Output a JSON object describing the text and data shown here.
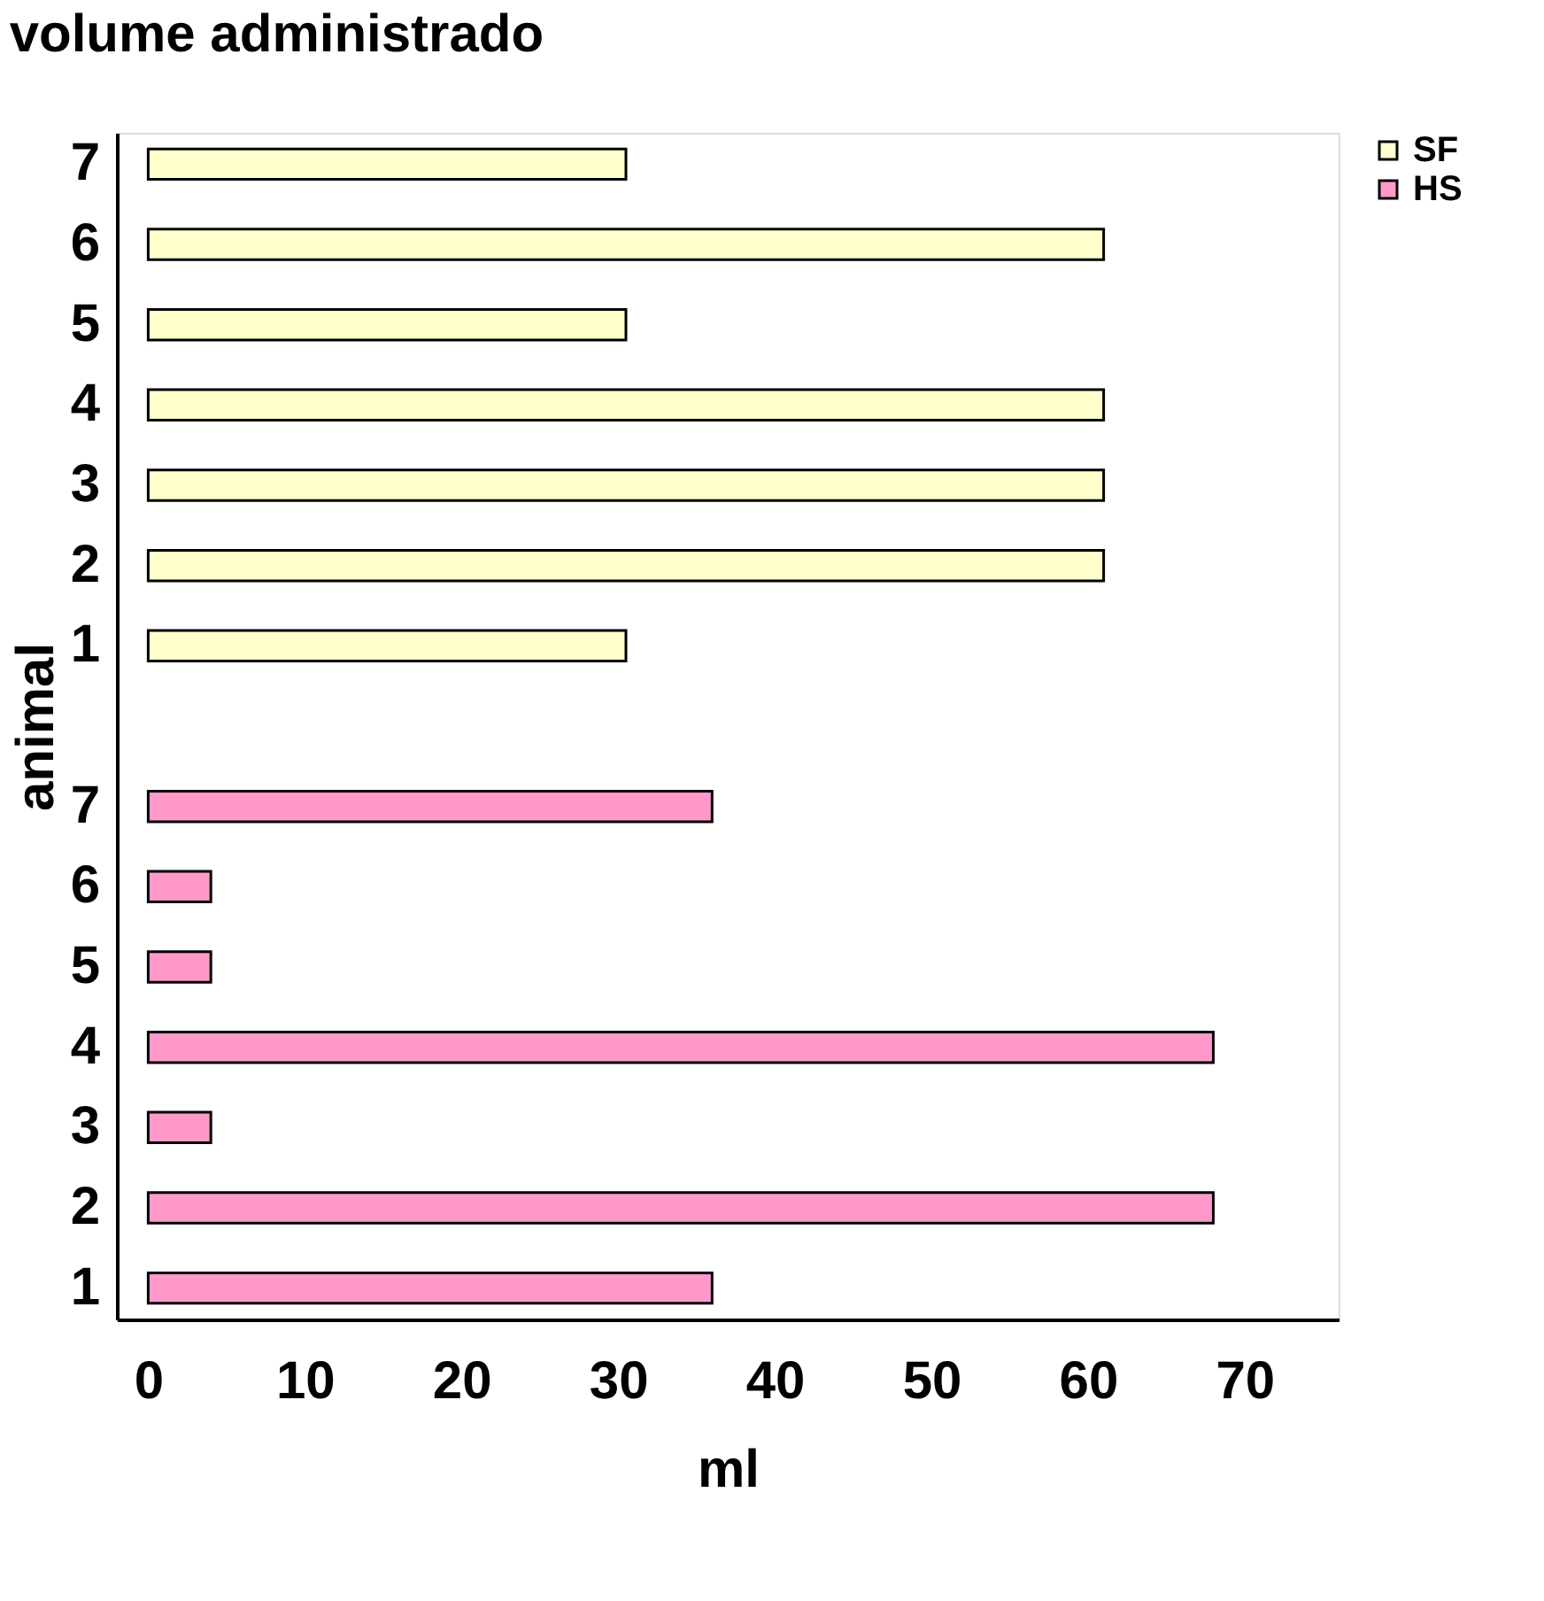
{
  "chart_data": {
    "type": "bar",
    "orientation": "horizontal",
    "title": "volume administrado",
    "xlabel": "ml",
    "ylabel": "animal",
    "categories": [
      "7",
      "6",
      "5",
      "4",
      "3",
      "2",
      "1",
      null,
      "7",
      "6",
      "5",
      "4",
      "3",
      "2",
      "1"
    ],
    "series": [
      {
        "name": "SF",
        "color": "#ffffcc",
        "values": [
          30.5,
          61,
          30.5,
          61,
          61,
          61,
          30.5,
          null,
          null,
          null,
          null,
          null,
          null,
          null,
          null
        ]
      },
      {
        "name": "HS",
        "color": "#ff99cc",
        "values": [
          null,
          null,
          null,
          null,
          null,
          null,
          null,
          null,
          36,
          4,
          4,
          68,
          4,
          68,
          36
        ]
      }
    ],
    "xlim": [
      -2,
      76
    ],
    "xticks": [
      0,
      10,
      20,
      30,
      40,
      50,
      60,
      70
    ],
    "grid": false,
    "legend": "right"
  }
}
